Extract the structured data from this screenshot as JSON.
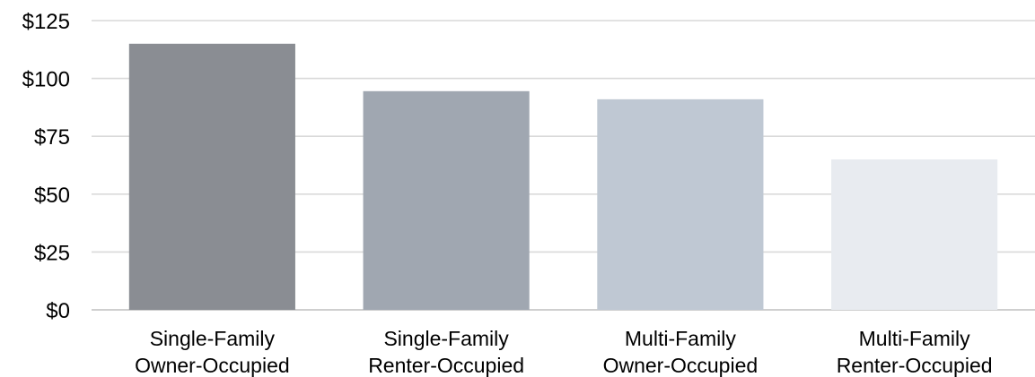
{
  "chart_data": {
    "type": "bar",
    "title": "",
    "xlabel": "",
    "ylabel": "",
    "categories": [
      [
        "Single-Family",
        "Owner-Occupied"
      ],
      [
        "Single-Family",
        "Renter-Occupied"
      ],
      [
        "Multi-Family",
        "Owner-Occupied"
      ],
      [
        "Multi-Family",
        "Renter-Occupied"
      ]
    ],
    "values": [
      115,
      94.5,
      91,
      65
    ],
    "ylim": [
      0,
      125
    ],
    "yticks": [
      0,
      25,
      50,
      75,
      100,
      125
    ],
    "ytick_labels": [
      "$0",
      "$25",
      "$50",
      "$75",
      "$100",
      "$125"
    ],
    "grid": true,
    "legend": "none",
    "bar_colors": [
      "#8a8d93",
      "#a0a7b1",
      "#bfc8d3",
      "#e8ebf0"
    ],
    "gridline_color": "#d9d9d9"
  }
}
